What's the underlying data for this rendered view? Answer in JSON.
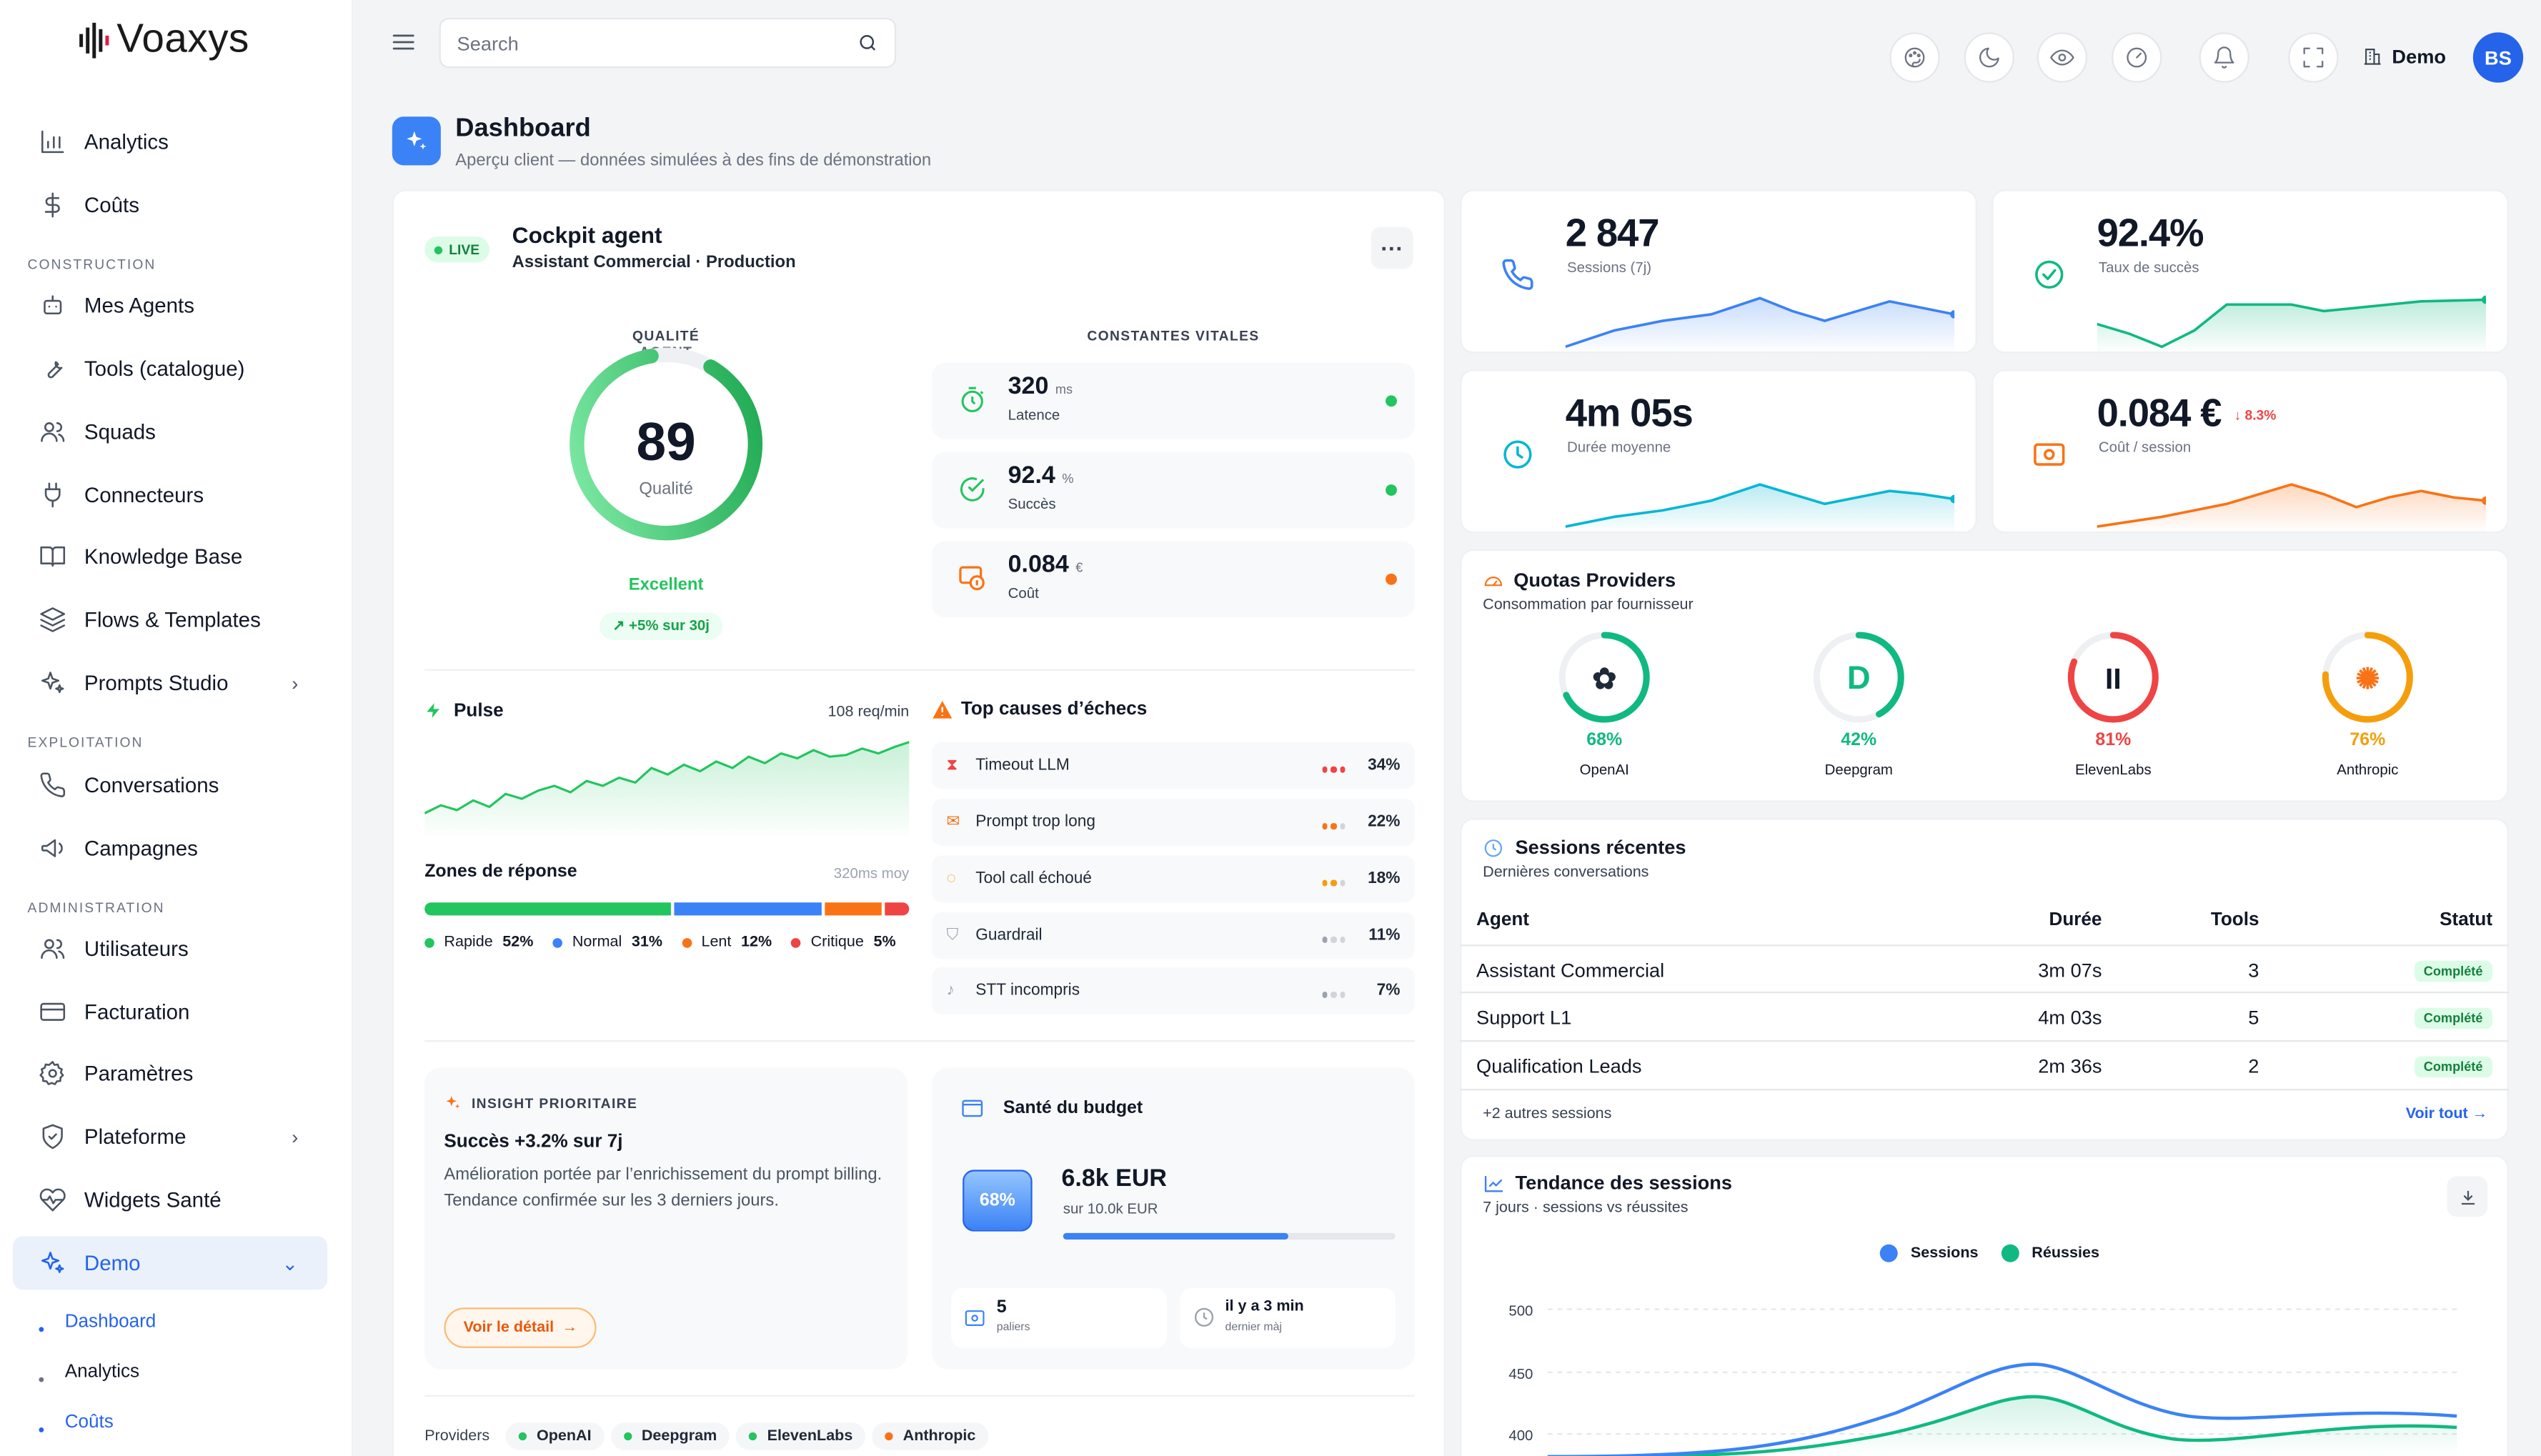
{
  "app": {
    "logo": "Voaxys"
  },
  "sidebar": {
    "items": [
      {
        "label": "Analytics",
        "icon": "chart-icon"
      },
      {
        "label": "Coûts",
        "icon": "dollar-icon"
      },
      {
        "label": "Mes Agents",
        "icon": "robot-icon"
      },
      {
        "label": "Tools (catalogue)",
        "icon": "wrench-icon"
      },
      {
        "label": "Squads",
        "icon": "users-icon"
      },
      {
        "label": "Connecteurs",
        "icon": "plug-icon"
      },
      {
        "label": "Knowledge Base",
        "icon": "book-icon"
      },
      {
        "label": "Flows & Templates",
        "icon": "layers-icon"
      },
      {
        "label": "Prompts Studio",
        "icon": "sparkles-icon"
      },
      {
        "label": "Conversations",
        "icon": "phone-icon"
      },
      {
        "label": "Campagnes",
        "icon": "megaphone-icon"
      },
      {
        "label": "Utilisateurs",
        "icon": "users-icon"
      },
      {
        "label": "Facturation",
        "icon": "card-icon"
      },
      {
        "label": "Paramètres",
        "icon": "gear-icon"
      },
      {
        "label": "Plateforme",
        "icon": "shield-icon"
      },
      {
        "label": "Widgets Santé",
        "icon": "heart-icon"
      },
      {
        "label": "Demo",
        "icon": "sparkles-icon"
      }
    ],
    "sections": {
      "construction": "CONSTRUCTION",
      "exploitation": "EXPLOITATION",
      "administration": "ADMINISTRATION"
    },
    "sub_items": [
      "Dashboard",
      "Analytics",
      "Coûts"
    ]
  },
  "topbar": {
    "search_placeholder": "Search",
    "tenant": "Demo",
    "avatar": "BS"
  },
  "page": {
    "title": "Dashboard",
    "subtitle": "Aperçu client — données simulées à des fins de démonstration"
  },
  "cockpit": {
    "live": "LIVE",
    "title": "Cockpit agent",
    "subtitle": "Assistant Commercial · Production",
    "quality_label": "QUALITÉ AGENT",
    "quality_value": "89",
    "quality_caption": "Qualité",
    "quality_score": 0.89,
    "quality_grade": "Excellent",
    "quality_trend": "+5% sur 30j",
    "vitals_label": "CONSTANTES VITALES",
    "vitals": [
      {
        "value": "320",
        "unit": "ms",
        "label": "Latence",
        "status_color": "#22c55e"
      },
      {
        "value": "92.4",
        "unit": "%",
        "label": "Succès",
        "status_color": "#22c55e"
      },
      {
        "value": "0.084",
        "unit": "€",
        "label": "Coût",
        "status_color": "#f97316"
      }
    ],
    "pulse_title": "Pulse",
    "pulse_rate": "108 req/min",
    "zones_title": "Zones de réponse",
    "zones_avg": "320ms moy",
    "zones": [
      {
        "name": "Rapide",
        "pct": "52%",
        "value": 52,
        "color": "#22c55e"
      },
      {
        "name": "Normal",
        "pct": "31%",
        "value": 31,
        "color": "#3b82f6"
      },
      {
        "name": "Lent",
        "pct": "12%",
        "value": 12,
        "color": "#f97316"
      },
      {
        "name": "Critique",
        "pct": "5%",
        "value": 5,
        "color": "#ef4444"
      }
    ],
    "causes_title": "Top causes d’échecs",
    "causes": [
      {
        "label": "Timeout LLM",
        "pct": "34%",
        "icon": "hourglass-icon",
        "color": "#ef4444",
        "level": 3
      },
      {
        "label": "Prompt trop long",
        "pct": "22%",
        "icon": "scroll-icon",
        "color": "#f97316",
        "level": 2
      },
      {
        "label": "Tool call échoué",
        "pct": "18%",
        "icon": "tool-icon",
        "color": "#f59e0b",
        "level": 2
      },
      {
        "label": "Guardrail",
        "pct": "11%",
        "icon": "shield-icon",
        "color": "#9ca3af",
        "level": 1
      },
      {
        "label": "STT incompris",
        "pct": "7%",
        "icon": "mic-icon",
        "color": "#9ca3af",
        "level": 1
      }
    ],
    "insight_tag": "INSIGHT PRIORITAIRE",
    "insight_title": "Succès +3.2% sur 7j",
    "insight_text": "Amélioration portée par l’enrichissement du prompt billing. Tendance confirmée sur les 3 derniers jours.",
    "insight_button": "Voir le détail",
    "budget_title": "Santé du budget",
    "budget_pct": "68%",
    "budget_fraction": 0.68,
    "budget_value": "6.8k EUR",
    "budget_total": "sur 10.0k EUR",
    "budget_tiers_value": "5",
    "budget_tiers_label": "paliers",
    "budget_update_value": "il y a 3 min",
    "budget_update_label": "dernier màj",
    "providers_label": "Providers",
    "providers": [
      {
        "name": "OpenAI",
        "color": "#22c55e"
      },
      {
        "name": "Deepgram",
        "color": "#22c55e"
      },
      {
        "name": "ElevenLabs",
        "color": "#22c55e"
      },
      {
        "name": "Anthropic",
        "color": "#f97316"
      }
    ]
  },
  "kpis": [
    {
      "value": "2 847",
      "label": "Sessions (7j)",
      "color": "#3b82f6",
      "icon": "phone-icon",
      "delta": ""
    },
    {
      "value": "92.4%",
      "label": "Taux de succès",
      "color": "#10b981",
      "icon": "check-circle-icon",
      "delta": ""
    },
    {
      "value": "4m 05s",
      "label": "Durée moyenne",
      "color": "#06b6d4",
      "icon": "clock-icon",
      "delta": ""
    },
    {
      "value": "0.084 €",
      "label": "Coût / session",
      "color": "#f97316",
      "icon": "wallet-icon",
      "delta": "↓ 8.3%"
    }
  ],
  "quotas": {
    "title": "Quotas Providers",
    "subtitle": "Consommation par fournisseur",
    "items": [
      {
        "name": "OpenAI",
        "pct": "68%",
        "value": 68,
        "color": "#10b981"
      },
      {
        "name": "Deepgram",
        "pct": "42%",
        "value": 42,
        "color": "#10b981"
      },
      {
        "name": "ElevenLabs",
        "pct": "81%",
        "value": 81,
        "color": "#ef4444"
      },
      {
        "name": "Anthropic",
        "pct": "76%",
        "value": 76,
        "color": "#f59e0b"
      }
    ]
  },
  "sessions": {
    "title": "Sessions récentes",
    "subtitle": "Dernières conversations",
    "headers": [
      "Agent",
      "Durée",
      "Tools",
      "Statut"
    ],
    "rows": [
      {
        "agent": "Assistant Commercial",
        "duration": "3m 07s",
        "tools": "3",
        "status": "Complété"
      },
      {
        "agent": "Support L1",
        "duration": "4m 03s",
        "tools": "5",
        "status": "Complété"
      },
      {
        "agent": "Qualification Leads",
        "duration": "2m 36s",
        "tools": "2",
        "status": "Complété"
      }
    ],
    "more": "+2 autres sessions",
    "see_all": "Voir tout →"
  },
  "trend": {
    "title": "Tendance des sessions",
    "subtitle": "7 jours · sessions vs réussites"
  },
  "chart_data": {
    "type": "line",
    "series": [
      {
        "name": "Sessions",
        "color": "#3b82f6"
      },
      {
        "name": "Réussies",
        "color": "#10b981"
      }
    ],
    "y_ticks": [
      "500",
      "450",
      "400"
    ]
  }
}
